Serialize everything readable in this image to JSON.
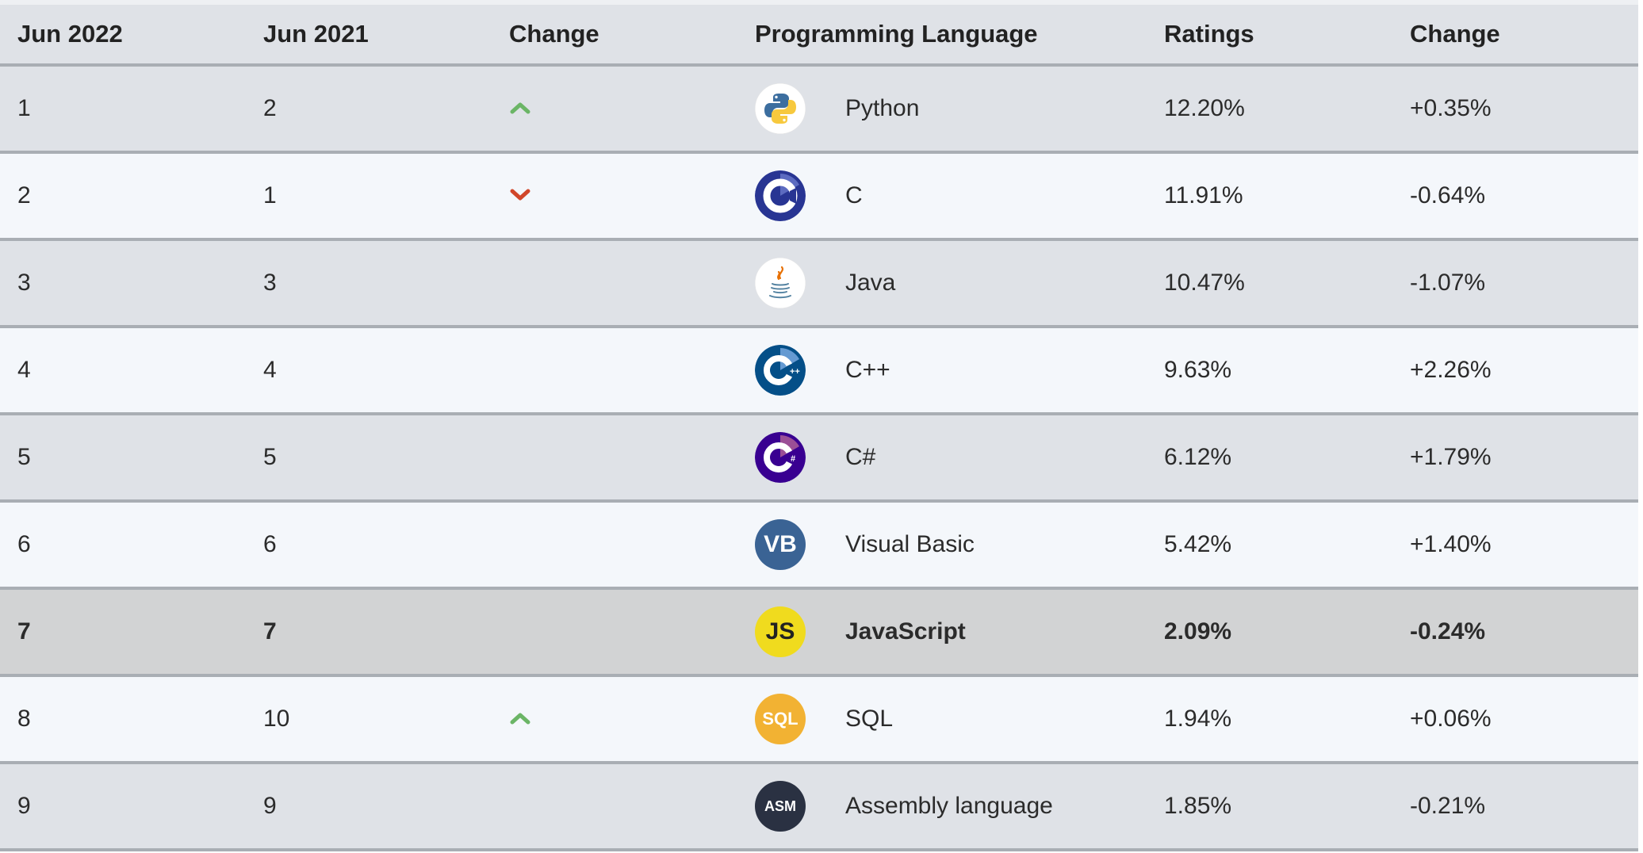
{
  "headers": {
    "col1": "Jun 2022",
    "col2": "Jun 2021",
    "col3": "Change",
    "col4": "Programming Language",
    "col5": "Ratings",
    "col6": "Change"
  },
  "colors": {
    "up_arrow": "#6bb566",
    "down_arrow": "#d1462a",
    "row_odd": "#dfe2e7",
    "row_even": "#f4f7fb",
    "row_highlight": "#d2d3d4"
  },
  "rows": [
    {
      "rank_now": "1",
      "rank_prev": "2",
      "trend": "up",
      "logo": "python-logo-icon",
      "language": "Python",
      "rating": "12.20%",
      "change": "+0.35%"
    },
    {
      "rank_now": "2",
      "rank_prev": "1",
      "trend": "down",
      "logo": "c-logo-icon",
      "language": "C",
      "rating": "11.91%",
      "change": "-0.64%"
    },
    {
      "rank_now": "3",
      "rank_prev": "3",
      "trend": "none",
      "logo": "java-logo-icon",
      "language": "Java",
      "rating": "10.47%",
      "change": "-1.07%"
    },
    {
      "rank_now": "4",
      "rank_prev": "4",
      "trend": "none",
      "logo": "cpp-logo-icon",
      "language": "C++",
      "rating": "9.63%",
      "change": "+2.26%"
    },
    {
      "rank_now": "5",
      "rank_prev": "5",
      "trend": "none",
      "logo": "csharp-logo-icon",
      "language": "C#",
      "rating": "6.12%",
      "change": "+1.79%"
    },
    {
      "rank_now": "6",
      "rank_prev": "6",
      "trend": "none",
      "logo": "visual-basic-logo-icon",
      "logo_text": "VB",
      "language": "Visual Basic",
      "rating": "5.42%",
      "change": "+1.40%"
    },
    {
      "rank_now": "7",
      "rank_prev": "7",
      "trend": "none",
      "logo": "javascript-logo-icon",
      "logo_text": "JS",
      "language": "JavaScript",
      "rating": "2.09%",
      "change": "-0.24%",
      "highlight": true
    },
    {
      "rank_now": "8",
      "rank_prev": "10",
      "trend": "up",
      "logo": "sql-logo-icon",
      "logo_text": "SQL",
      "language": "SQL",
      "rating": "1.94%",
      "change": "+0.06%"
    },
    {
      "rank_now": "9",
      "rank_prev": "9",
      "trend": "none",
      "logo": "assembly-logo-icon",
      "logo_text": "ASM",
      "language": "Assembly language",
      "rating": "1.85%",
      "change": "-0.21%"
    }
  ]
}
